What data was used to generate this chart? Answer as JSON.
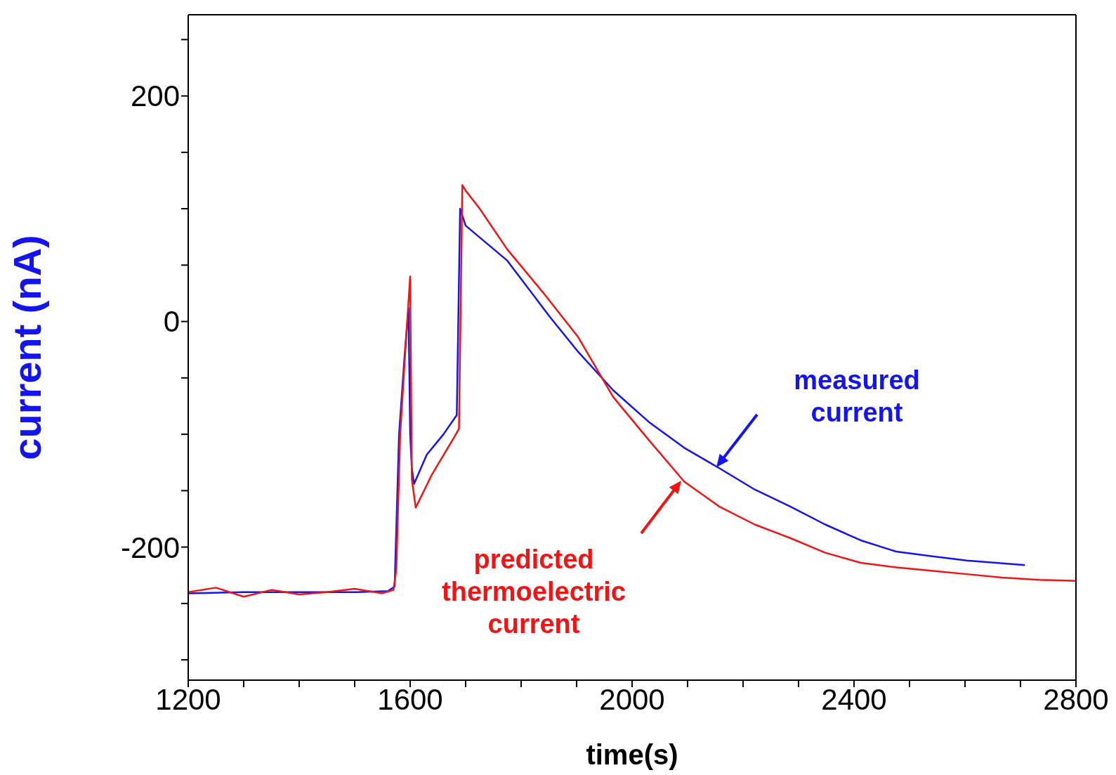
{
  "chart_data": {
    "type": "line",
    "xlabel": "time(s)",
    "ylabel": "current (nA)",
    "xlim": [
      1200,
      2800
    ],
    "ylim": [
      -318,
      272
    ],
    "xticks": [
      1200,
      {
        "value": 1300,
        "label": null
      },
      {
        "value": 1400,
        "label": null
      },
      {
        "value": 1500,
        "label": null
      },
      1600,
      {
        "value": 1700,
        "label": null
      },
      {
        "value": 1800,
        "label": null
      },
      {
        "value": 1900,
        "label": null
      },
      2000,
      {
        "value": 2100,
        "label": null
      },
      {
        "value": 2200,
        "label": null
      },
      {
        "value": 2300,
        "label": null
      },
      2400,
      {
        "value": 2500,
        "label": null
      },
      {
        "value": 2600,
        "label": null
      },
      {
        "value": 2700,
        "label": null
      },
      2800
    ],
    "yticks": [
      {
        "value": -300,
        "label": null
      },
      {
        "value": -250,
        "label": null
      },
      -200,
      {
        "value": -150,
        "label": null
      },
      {
        "value": -100,
        "label": null
      },
      {
        "value": -50,
        "label": null
      },
      0,
      {
        "value": 50,
        "label": null
      },
      {
        "value": 100,
        "label": null
      },
      {
        "value": 150,
        "label": null
      },
      200,
      {
        "value": 250,
        "label": null
      }
    ],
    "marker": "none",
    "line_style": "solid",
    "series": [
      {
        "color": "#1414f0",
        "x": [
          1200,
          1300,
          1400,
          1500,
          1560,
          1572,
          1580,
          1590,
          1597,
          1600,
          1603,
          1607,
          1630,
          1660,
          1684,
          1690,
          1700,
          1775,
          1852,
          1903,
          1966,
          2030,
          2094,
          2157,
          2221,
          2285,
          2348,
          2412,
          2476,
          2539,
          2603,
          2708
        ],
        "values": [
          -241,
          -240,
          -240,
          -240,
          -239,
          -235,
          -100,
          -30,
          12,
          -100,
          -130,
          -144,
          -118,
          -100,
          -83,
          100,
          85,
          54,
          4,
          -27,
          -61,
          -89,
          -112,
          -130,
          -149,
          -164,
          -180,
          -194,
          -204,
          -208,
          -212,
          -216
        ]
      },
      {
        "color": "#f01414",
        "x": [
          1200,
          1250,
          1300,
          1350,
          1400,
          1450,
          1500,
          1550,
          1570,
          1575,
          1582,
          1592,
          1600,
          1603,
          1610,
          1640,
          1680,
          1688,
          1694,
          1700,
          1724,
          1775,
          1839,
          1903,
          1966,
          2030,
          2094,
          2157,
          2221,
          2285,
          2348,
          2412,
          2476,
          2539,
          2603,
          2667,
          2733,
          2800
        ],
        "values": [
          -240,
          -236,
          -244,
          -238,
          -242,
          -240,
          -237,
          -241,
          -238,
          -220,
          -100,
          -20,
          40,
          -140,
          -165,
          -135,
          -102,
          -95,
          121,
          116,
          101,
          64,
          26,
          -14,
          -67,
          -105,
          -142,
          -164,
          -180,
          -192,
          -205,
          -214,
          -218,
          -221,
          -224,
          -227,
          -229,
          -230
        ]
      }
    ],
    "annotations": [
      "measured current",
      "predicted thermoelectric current"
    ]
  }
}
